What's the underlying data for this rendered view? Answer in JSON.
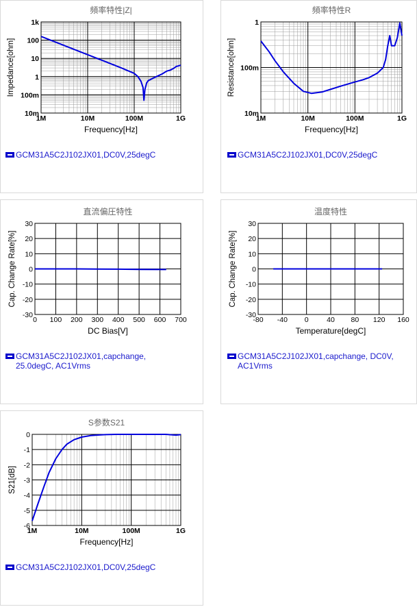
{
  "colors": {
    "line": "#0000dd",
    "legend_text": "#1a1acc",
    "title": "#666666",
    "grid": "#000000",
    "subgrid": "#999999"
  },
  "panels": [
    {
      "legend": "GCM31A5C2J102JX01,DC0V,25degC"
    },
    {
      "legend": "GCM31A5C2J102JX01,DC0V,25degC"
    },
    {
      "legend": "GCM31A5C2J102JX01,capchange,\n25.0degC, AC1Vrms"
    },
    {
      "legend": "GCM31A5C2J102JX01,capchange, DC0V,\nAC1Vrms"
    },
    {
      "legend": "GCM31A5C2J102JX01,DC0V,25degC"
    }
  ],
  "chart_data": [
    {
      "type": "line",
      "title": "頻率特性|Z|",
      "xlabel": "Frequency[Hz]",
      "ylabel": "Impedance[ohm]",
      "xscale": "log",
      "yscale": "log",
      "xlim": [
        1000000,
        1000000000
      ],
      "ylim": [
        0.01,
        1000
      ],
      "xticks": [
        {
          "v": 1000000,
          "l": "1M"
        },
        {
          "v": 10000000,
          "l": "10M"
        },
        {
          "v": 100000000,
          "l": "100M"
        },
        {
          "v": 1000000000,
          "l": "1G"
        }
      ],
      "yticks": [
        {
          "v": 1000,
          "l": "1k"
        },
        {
          "v": 100,
          "l": "100"
        },
        {
          "v": 10,
          "l": "10"
        },
        {
          "v": 1,
          "l": "1"
        },
        {
          "v": 0.1,
          "l": "100m"
        },
        {
          "v": 0.01,
          "l": "10m"
        }
      ],
      "series": [
        {
          "x": [
            1000000,
            2000000,
            5000000,
            10000000,
            20000000,
            50000000,
            100000000,
            120000000,
            140000000,
            155000000,
            162000000,
            170000000,
            185000000,
            200000000,
            250000000,
            300000000,
            400000000,
            500000000,
            600000000,
            700000000,
            800000000,
            1000000000
          ],
          "y": [
            160,
            80,
            32,
            16,
            8,
            3.2,
            1.5,
            1.0,
            0.55,
            0.25,
            0.05,
            0.2,
            0.45,
            0.6,
            0.8,
            1.0,
            1.4,
            2.0,
            2.3,
            2.8,
            3.6,
            4.2
          ]
        }
      ]
    },
    {
      "type": "line",
      "title": "頻率特性R",
      "xlabel": "Frequency[Hz]",
      "ylabel": "Resistance[ohm]",
      "xscale": "log",
      "yscale": "log",
      "xlim": [
        1000000,
        1000000000
      ],
      "ylim": [
        0.01,
        1
      ],
      "xticks": [
        {
          "v": 1000000,
          "l": "1M"
        },
        {
          "v": 10000000,
          "l": "10M"
        },
        {
          "v": 100000000,
          "l": "100M"
        },
        {
          "v": 1000000000,
          "l": "1G"
        }
      ],
      "yticks": [
        {
          "v": 1,
          "l": "1"
        },
        {
          "v": 0.1,
          "l": "100m"
        },
        {
          "v": 0.01,
          "l": "10m"
        }
      ],
      "series": [
        {
          "x": [
            1000000,
            1500000,
            2000000,
            3000000,
            5000000,
            8000000,
            12000000,
            20000000,
            30000000,
            50000000,
            80000000,
            100000000,
            150000000,
            200000000,
            300000000,
            400000000,
            450000000,
            500000000,
            550000000,
            600000000,
            700000000,
            800000000,
            900000000,
            1000000000
          ],
          "y": [
            0.38,
            0.22,
            0.14,
            0.08,
            0.045,
            0.03,
            0.027,
            0.029,
            0.033,
            0.039,
            0.045,
            0.048,
            0.054,
            0.06,
            0.075,
            0.1,
            0.15,
            0.3,
            0.5,
            0.3,
            0.3,
            0.45,
            0.95,
            0.5
          ]
        }
      ]
    },
    {
      "type": "line",
      "title": "直流偏圧特性",
      "xlabel": "DC Bias[V]",
      "ylabel": "Cap. Change Rate[%]",
      "xlim": [
        0,
        700
      ],
      "ylim": [
        -30,
        30
      ],
      "xticks": [
        {
          "v": 0,
          "l": "0"
        },
        {
          "v": 100,
          "l": "100"
        },
        {
          "v": 200,
          "l": "200"
        },
        {
          "v": 300,
          "l": "300"
        },
        {
          "v": 400,
          "l": "400"
        },
        {
          "v": 500,
          "l": "500"
        },
        {
          "v": 600,
          "l": "600"
        },
        {
          "v": 700,
          "l": "700"
        }
      ],
      "yticks": [
        {
          "v": 30,
          "l": "30"
        },
        {
          "v": 20,
          "l": "20"
        },
        {
          "v": 10,
          "l": "10"
        },
        {
          "v": 0,
          "l": "0"
        },
        {
          "v": -10,
          "l": "-10"
        },
        {
          "v": -20,
          "l": "-20"
        },
        {
          "v": -30,
          "l": "-30"
        }
      ],
      "series": [
        {
          "x": [
            0,
            100,
            200,
            300,
            400,
            500,
            630
          ],
          "y": [
            0,
            0,
            0,
            -0.1,
            -0.2,
            -0.3,
            -0.4
          ]
        }
      ]
    },
    {
      "type": "line",
      "title": "温度特性",
      "xlabel": "Temperature[degC]",
      "ylabel": "Cap. Change Rate[%]",
      "xlim": [
        -80,
        160
      ],
      "ylim": [
        -30,
        30
      ],
      "xticks": [
        {
          "v": -80,
          "l": "-80"
        },
        {
          "v": -40,
          "l": "-40"
        },
        {
          "v": 0,
          "l": "0"
        },
        {
          "v": 40,
          "l": "40"
        },
        {
          "v": 80,
          "l": "80"
        },
        {
          "v": 120,
          "l": "120"
        },
        {
          "v": 160,
          "l": "160"
        }
      ],
      "yticks": [
        {
          "v": 30,
          "l": "30"
        },
        {
          "v": 20,
          "l": "20"
        },
        {
          "v": 10,
          "l": "10"
        },
        {
          "v": 0,
          "l": "0"
        },
        {
          "v": -10,
          "l": "-10"
        },
        {
          "v": -20,
          "l": "-20"
        },
        {
          "v": -30,
          "l": "-30"
        }
      ],
      "series": [
        {
          "x": [
            -55,
            0,
            25,
            85,
            125
          ],
          "y": [
            0,
            0,
            0,
            0,
            0
          ]
        }
      ]
    },
    {
      "type": "line",
      "title": "S参数S21",
      "xlabel": "Frequency[Hz]",
      "ylabel": "S21[dB]",
      "xscale": "log",
      "xlim": [
        1000000,
        1000000000
      ],
      "ylim": [
        -6,
        0
      ],
      "xticks": [
        {
          "v": 1000000,
          "l": "1M"
        },
        {
          "v": 10000000,
          "l": "10M"
        },
        {
          "v": 100000000,
          "l": "100M"
        },
        {
          "v": 1000000000,
          "l": "1G"
        }
      ],
      "yticks": [
        {
          "v": 0,
          "l": "0"
        },
        {
          "v": -1,
          "l": "-1"
        },
        {
          "v": -2,
          "l": "-2"
        },
        {
          "v": -3,
          "l": "-3"
        },
        {
          "v": -4,
          "l": "-4"
        },
        {
          "v": -5,
          "l": "-5"
        },
        {
          "v": -6,
          "l": "-6"
        }
      ],
      "series": [
        {
          "x": [
            1000000,
            1300000,
            1700000,
            2200000,
            3000000,
            4000000,
            5000000,
            7000000,
            10000000,
            15000000,
            20000000,
            30000000,
            50000000,
            100000000,
            500000000,
            800000000,
            1000000000
          ],
          "y": [
            -5.7,
            -4.6,
            -3.5,
            -2.5,
            -1.6,
            -1.0,
            -0.65,
            -0.35,
            -0.18,
            -0.08,
            -0.05,
            -0.02,
            0,
            0,
            0,
            -0.05,
            -0.02
          ]
        }
      ]
    }
  ]
}
